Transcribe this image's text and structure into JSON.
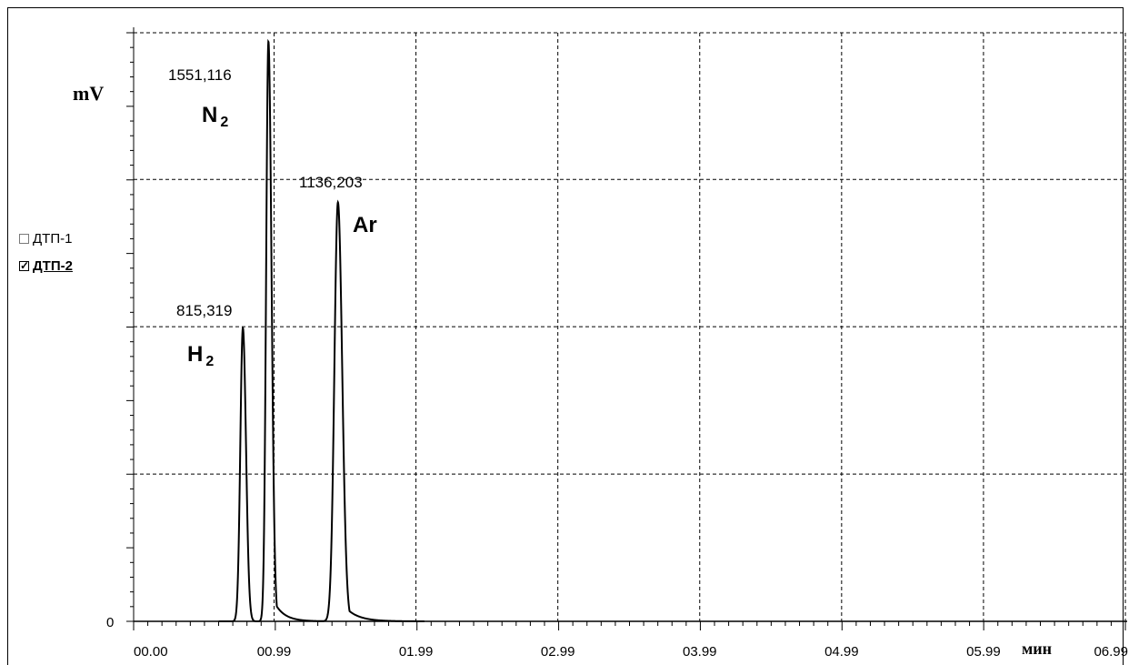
{
  "chart_data": {
    "type": "line",
    "ylabel": "mV",
    "xlabel": "мин",
    "y_ticks": [
      "0"
    ],
    "x_tick_labels": [
      "00.00",
      "00.99",
      "01.99",
      "02.99",
      "03.99",
      "04.99",
      "05.99",
      "06.99"
    ],
    "x_ticks": [
      0.0,
      0.99,
      1.99,
      2.99,
      3.99,
      4.99,
      5.99,
      6.99
    ],
    "xlim": [
      0,
      6.99
    ],
    "ylim": [
      0,
      2030
    ],
    "grid": true,
    "y_grid": [
      508,
      1016,
      1524,
      2030
    ],
    "series": [
      {
        "name": "ДТП-2",
        "color": "#000000",
        "peaks": [
          {
            "label": "H2",
            "apex_label": "815,319",
            "x": 0.77,
            "height": 1012,
            "sigma_l": 0.018,
            "sigma_r": 0.022,
            "tail": 0.0
          },
          {
            "label": "N2",
            "apex_label": "1551,116",
            "x": 0.95,
            "height": 2000,
            "sigma_l": 0.016,
            "sigma_r": 0.022,
            "tail": 0.07
          },
          {
            "label": "Ar",
            "apex_label": "1136,203",
            "x": 1.44,
            "height": 1445,
            "sigma_l": 0.025,
            "sigma_r": 0.03,
            "tail": 0.09
          }
        ]
      }
    ],
    "peak_labels": [
      {
        "formula": "N",
        "sub": "2"
      },
      {
        "formula": "H",
        "sub": "2"
      },
      {
        "formula": "Ar",
        "sub": ""
      }
    ]
  },
  "legend": {
    "items": [
      {
        "label": "ДТП-1",
        "checked": false
      },
      {
        "label": "ДТП-2",
        "checked": true
      }
    ]
  }
}
